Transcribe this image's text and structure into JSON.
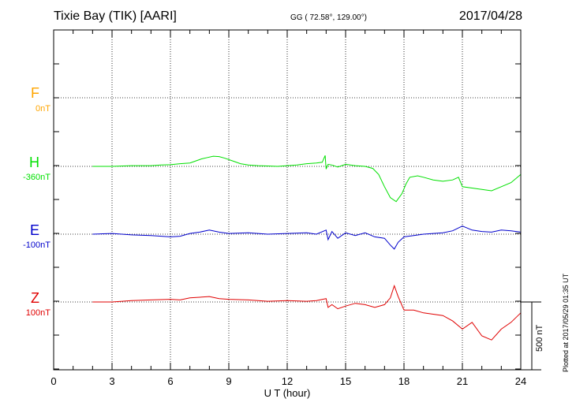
{
  "header": {
    "station": "Tixie Bay (TIK)  [AARI]",
    "coords": "GG ( 72.58°, 129.00°)",
    "date": "2017/04/28"
  },
  "footer": {
    "plotted": "Plotted at 2017/05/29 01:35 UT"
  },
  "scale": {
    "label": "500 nT",
    "value_nT": 500
  },
  "components": [
    {
      "name": "F",
      "offset": "0nT",
      "color": "#ffa500"
    },
    {
      "name": "H",
      "offset": "-360nT",
      "color": "#00e000"
    },
    {
      "name": "E",
      "offset": "-100nT",
      "color": "#0000cc"
    },
    {
      "name": "Z",
      "offset": "100nT",
      "color": "#e00000"
    }
  ],
  "chart_data": {
    "type": "line",
    "title": "Tixie Bay (TIK)  [AARI]",
    "xlabel": "U T (hour)",
    "ylabel": "",
    "xlim": [
      0,
      24
    ],
    "xticks": [
      0,
      3,
      6,
      9,
      12,
      15,
      18,
      21,
      24
    ],
    "xtick_labels": [
      "0",
      "3",
      "6",
      "9",
      "12",
      "15",
      "18",
      "21",
      "24"
    ],
    "y_units": "nT (each series drawn relative to its own baseline)",
    "grid": true,
    "series": [
      {
        "name": "F",
        "color": "#ffa500",
        "x": [],
        "y": []
      },
      {
        "name": "H",
        "color": "#00e000",
        "x": [
          2.0,
          3.0,
          4.0,
          5.0,
          5.5,
          6.0,
          6.5,
          7.0,
          7.3,
          7.6,
          7.9,
          8.2,
          8.5,
          8.8,
          9.2,
          9.6,
          10.0,
          10.5,
          11.0,
          11.5,
          12.0,
          12.5,
          13.0,
          13.5,
          13.8,
          13.95,
          14.0,
          14.1,
          14.3,
          14.6,
          15.0,
          15.5,
          16.0,
          16.4,
          16.7,
          17.0,
          17.3,
          17.6,
          17.9,
          18.1,
          18.3,
          18.7,
          19.0,
          19.5,
          20.0,
          20.5,
          20.8,
          21.0,
          21.5,
          22.0,
          22.5,
          23.0,
          23.5,
          24.0
        ],
        "y": [
          0,
          0,
          5,
          5,
          10,
          12,
          20,
          25,
          40,
          55,
          65,
          75,
          72,
          60,
          40,
          20,
          10,
          5,
          3,
          0,
          5,
          10,
          20,
          25,
          30,
          80,
          -20,
          15,
          10,
          -5,
          15,
          5,
          0,
          -15,
          -60,
          -150,
          -230,
          -260,
          -200,
          -130,
          -80,
          -70,
          -80,
          -100,
          -110,
          -100,
          -80,
          -150,
          -160,
          -170,
          -180,
          -150,
          -120,
          -60
        ]
      },
      {
        "name": "E",
        "color": "#0000cc",
        "x": [
          2.0,
          3.0,
          4.0,
          5.0,
          6.0,
          6.5,
          7.0,
          7.5,
          8.0,
          8.5,
          9.0,
          10.0,
          11.0,
          12.0,
          13.0,
          13.5,
          14.0,
          14.1,
          14.3,
          14.6,
          15.0,
          15.5,
          16.0,
          16.5,
          17.0,
          17.3,
          17.5,
          17.7,
          18.0,
          18.5,
          19.0,
          20.0,
          20.5,
          21.0,
          21.5,
          22.0,
          22.5,
          23.0,
          23.5,
          24.0
        ],
        "y": [
          0,
          5,
          -5,
          -10,
          -20,
          -15,
          5,
          15,
          30,
          15,
          5,
          10,
          0,
          5,
          10,
          0,
          30,
          -40,
          20,
          -30,
          10,
          -10,
          10,
          -20,
          -30,
          -80,
          -110,
          -60,
          -20,
          -10,
          0,
          10,
          25,
          60,
          30,
          20,
          15,
          30,
          25,
          15
        ]
      },
      {
        "name": "Z",
        "color": "#e00000",
        "x": [
          2.0,
          3.0,
          4.0,
          5.0,
          6.0,
          6.5,
          7.0,
          7.5,
          8.0,
          8.5,
          9.0,
          10.0,
          11.0,
          12.0,
          13.0,
          13.5,
          14.0,
          14.1,
          14.3,
          14.6,
          15.0,
          15.5,
          16.0,
          16.5,
          17.0,
          17.3,
          17.5,
          17.7,
          18.0,
          18.5,
          19.0,
          20.0,
          20.5,
          21.0,
          21.5,
          22.0,
          22.5,
          23.0,
          23.5,
          24.0
        ],
        "y": [
          0,
          0,
          10,
          15,
          20,
          15,
          30,
          35,
          40,
          25,
          20,
          15,
          5,
          10,
          5,
          10,
          25,
          -40,
          -20,
          -50,
          -30,
          -10,
          -20,
          -40,
          -20,
          30,
          120,
          40,
          -60,
          -60,
          -80,
          -100,
          -140,
          -200,
          -150,
          -250,
          -280,
          -200,
          -150,
          -80
        ]
      }
    ]
  }
}
